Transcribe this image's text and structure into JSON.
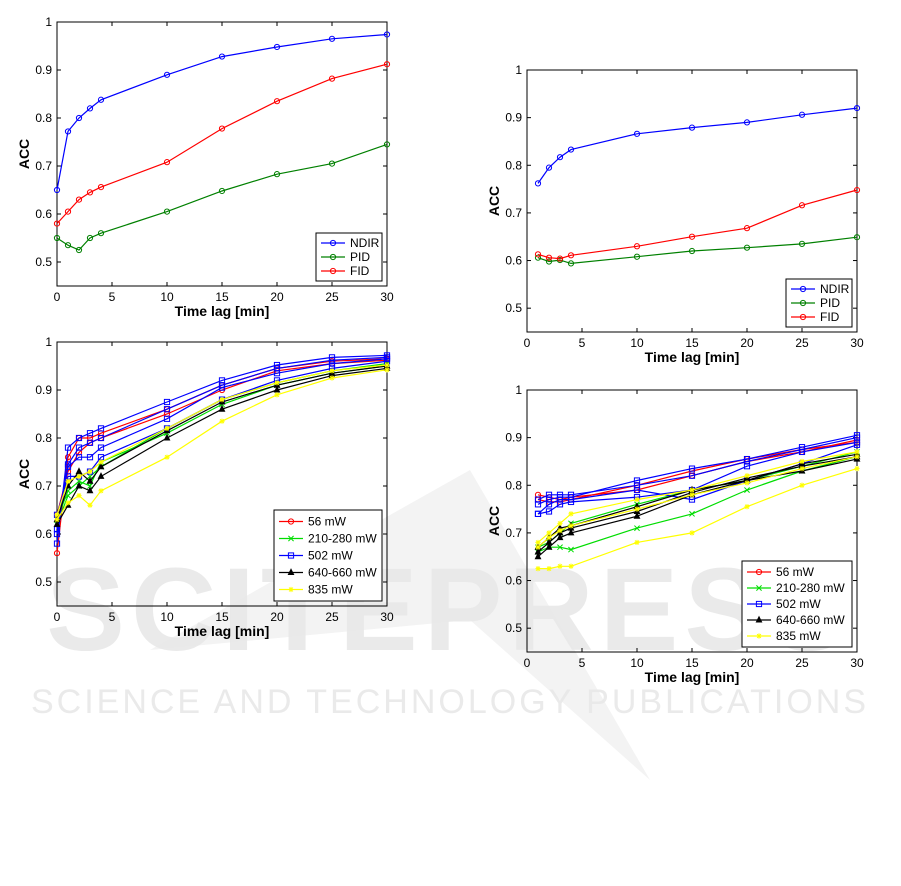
{
  "watermark": {
    "line1": "SCITEPRESS",
    "line2": "SCIENCE AND TECHNOLOGY PUBLICATIONS"
  },
  "chart_data": [
    {
      "type": "line",
      "panel": "top-left",
      "xlabel": "Time lag [min]",
      "ylabel": "ACC",
      "xlim": [
        0,
        30
      ],
      "ylim": [
        0.45,
        1.0
      ],
      "xticks": [
        0,
        5,
        10,
        15,
        20,
        25,
        30
      ],
      "yticks": [
        0.5,
        0.6,
        0.7,
        0.8,
        0.9,
        1
      ],
      "legend": "bottom-right",
      "series": [
        {
          "name": "NDIR",
          "color": "#0000ff",
          "marker": "circle",
          "x": [
            0,
            1,
            2,
            3,
            4,
            10,
            15,
            20,
            25,
            30
          ],
          "y": [
            0.65,
            0.772,
            0.8,
            0.82,
            0.838,
            0.89,
            0.928,
            0.948,
            0.965,
            0.974
          ]
        },
        {
          "name": "PID",
          "color": "#008000",
          "marker": "circle",
          "x": [
            0,
            1,
            2,
            3,
            4,
            10,
            15,
            20,
            25,
            30
          ],
          "y": [
            0.55,
            0.535,
            0.525,
            0.55,
            0.56,
            0.605,
            0.648,
            0.683,
            0.705,
            0.745
          ]
        },
        {
          "name": "FID",
          "color": "#ff0000",
          "marker": "circle",
          "x": [
            0,
            1,
            2,
            3,
            4,
            10,
            15,
            20,
            25,
            30
          ],
          "y": [
            0.58,
            0.605,
            0.63,
            0.645,
            0.656,
            0.708,
            0.778,
            0.835,
            0.882,
            0.912
          ]
        }
      ]
    },
    {
      "type": "line",
      "panel": "top-right",
      "xlabel": "Time lag [min]",
      "ylabel": "ACC",
      "xlim": [
        0,
        30
      ],
      "ylim": [
        0.45,
        1.0
      ],
      "xticks": [
        0,
        5,
        10,
        15,
        20,
        25,
        30
      ],
      "yticks": [
        0.5,
        0.6,
        0.7,
        0.8,
        0.9,
        1
      ],
      "legend": "bottom-right",
      "series": [
        {
          "name": "NDIR",
          "color": "#0000ff",
          "marker": "circle",
          "x": [
            1,
            2,
            3,
            4,
            10,
            15,
            20,
            25,
            30
          ],
          "y": [
            0.762,
            0.795,
            0.817,
            0.833,
            0.866,
            0.879,
            0.89,
            0.906,
            0.92
          ]
        },
        {
          "name": "PID",
          "color": "#008000",
          "marker": "circle",
          "x": [
            1,
            2,
            3,
            4,
            10,
            15,
            20,
            25,
            30
          ],
          "y": [
            0.606,
            0.598,
            0.601,
            0.594,
            0.608,
            0.62,
            0.627,
            0.635,
            0.649
          ]
        },
        {
          "name": "FID",
          "color": "#ff0000",
          "marker": "circle",
          "x": [
            1,
            2,
            3,
            4,
            10,
            15,
            20,
            25,
            30
          ],
          "y": [
            0.613,
            0.606,
            0.604,
            0.611,
            0.63,
            0.65,
            0.668,
            0.716,
            0.748
          ]
        }
      ]
    },
    {
      "type": "line",
      "panel": "bottom-left",
      "xlabel": "Time lag [min]",
      "ylabel": "ACC",
      "xlim": [
        0,
        30
      ],
      "ylim": [
        0.45,
        1.0
      ],
      "xticks": [
        0,
        5,
        10,
        15,
        20,
        25,
        30
      ],
      "yticks": [
        0.5,
        0.6,
        0.7,
        0.8,
        0.9,
        1
      ],
      "legend": "bottom-right",
      "series": [
        {
          "name": "56 mW",
          "color": "#ff0000",
          "marker": "circle",
          "lines": [
            {
              "x": [
                0,
                1,
                2,
                3,
                4,
                10,
                15,
                20,
                25,
                30
              ],
              "y": [
                0.56,
                0.76,
                0.8,
                0.8,
                0.81,
                0.86,
                0.91,
                0.945,
                0.96,
                0.965
              ]
            },
            {
              "x": [
                0,
                1,
                2,
                3,
                4,
                10,
                15,
                20,
                25,
                30
              ],
              "y": [
                0.64,
                0.73,
                0.77,
                0.79,
                0.8,
                0.85,
                0.9,
                0.94,
                0.955,
                0.962
              ]
            }
          ]
        },
        {
          "name": "210-280 mW",
          "color": "#00dd00",
          "marker": "x",
          "lines": [
            {
              "x": [
                0,
                1,
                2,
                3,
                4,
                10,
                15,
                20,
                25,
                30
              ],
              "y": [
                0.63,
                0.69,
                0.71,
                0.7,
                0.75,
                0.81,
                0.87,
                0.91,
                0.935,
                0.95
              ]
            },
            {
              "x": [
                0,
                1,
                2,
                3,
                4,
                10,
                15,
                20,
                25,
                30
              ],
              "y": [
                0.62,
                0.68,
                0.7,
                0.72,
                0.74,
                0.82,
                0.88,
                0.915,
                0.94,
                0.955
              ]
            }
          ]
        },
        {
          "name": "502 mW",
          "color": "#0000ff",
          "marker": "square",
          "lines": [
            {
              "x": [
                0,
                1,
                2,
                3,
                4,
                10,
                15,
                20,
                25,
                30
              ],
              "y": [
                0.58,
                0.78,
                0.8,
                0.81,
                0.82,
                0.875,
                0.92,
                0.952,
                0.968,
                0.972
              ]
            },
            {
              "x": [
                0,
                1,
                2,
                3,
                4,
                10,
                15,
                20,
                25,
                30
              ],
              "y": [
                0.6,
                0.745,
                0.78,
                0.79,
                0.8,
                0.86,
                0.91,
                0.945,
                0.962,
                0.968
              ]
            },
            {
              "x": [
                0,
                1,
                2,
                3,
                4,
                10,
                15,
                20,
                25,
                30
              ],
              "y": [
                0.61,
                0.74,
                0.76,
                0.76,
                0.78,
                0.84,
                0.905,
                0.935,
                0.955,
                0.965
              ]
            },
            {
              "x": [
                0,
                1,
                2,
                3,
                4,
                10,
                15,
                20,
                25,
                30
              ],
              "y": [
                0.64,
                0.72,
                0.72,
                0.73,
                0.76,
                0.82,
                0.88,
                0.92,
                0.945,
                0.96
              ]
            }
          ]
        },
        {
          "name": "640-660 mW",
          "color": "#000000",
          "marker": "triangle",
          "lines": [
            {
              "x": [
                0,
                1,
                2,
                3,
                4,
                10,
                15,
                20,
                25,
                30
              ],
              "y": [
                0.62,
                0.66,
                0.7,
                0.69,
                0.72,
                0.8,
                0.86,
                0.9,
                0.93,
                0.945
              ]
            },
            {
              "x": [
                0,
                1,
                2,
                3,
                4,
                10,
                15,
                20,
                25,
                30
              ],
              "y": [
                0.63,
                0.7,
                0.73,
                0.71,
                0.74,
                0.815,
                0.875,
                0.91,
                0.935,
                0.95
              ]
            }
          ]
        },
        {
          "name": "835 mW",
          "color": "#ffff00",
          "marker": "star",
          "lines": [
            {
              "x": [
                0,
                1,
                2,
                3,
                4,
                10,
                15,
                20,
                25,
                30
              ],
              "y": [
                0.63,
                0.665,
                0.68,
                0.66,
                0.69,
                0.76,
                0.835,
                0.89,
                0.925,
                0.942
              ]
            },
            {
              "x": [
                0,
                1,
                2,
                3,
                4,
                10,
                15,
                20,
                25,
                30
              ],
              "y": [
                0.64,
                0.71,
                0.72,
                0.73,
                0.75,
                0.82,
                0.88,
                0.915,
                0.94,
                0.952
              ]
            }
          ]
        }
      ]
    },
    {
      "type": "line",
      "panel": "bottom-right",
      "xlabel": "Time lag [min]",
      "ylabel": "ACC",
      "xlim": [
        0,
        30
      ],
      "ylim": [
        0.45,
        1.0
      ],
      "xticks": [
        0,
        5,
        10,
        15,
        20,
        25,
        30
      ],
      "yticks": [
        0.5,
        0.6,
        0.7,
        0.8,
        0.9,
        1
      ],
      "legend": "bottom-right",
      "series": [
        {
          "name": "56 mW",
          "color": "#ff0000",
          "marker": "circle",
          "lines": [
            {
              "x": [
                1,
                2,
                3,
                4,
                10,
                15,
                20,
                25,
                30
              ],
              "y": [
                0.78,
                0.775,
                0.77,
                0.775,
                0.79,
                0.82,
                0.85,
                0.87,
                0.895
              ]
            },
            {
              "x": [
                1,
                2,
                3,
                4,
                10,
                15,
                20,
                25,
                30
              ],
              "y": [
                0.77,
                0.765,
                0.765,
                0.77,
                0.8,
                0.83,
                0.855,
                0.875,
                0.89
              ]
            }
          ]
        },
        {
          "name": "210-280 mW",
          "color": "#00dd00",
          "marker": "x",
          "lines": [
            {
              "x": [
                1,
                2,
                3,
                4,
                10,
                15,
                20,
                25,
                30
              ],
              "y": [
                0.66,
                0.67,
                0.67,
                0.665,
                0.71,
                0.74,
                0.79,
                0.83,
                0.86
              ]
            },
            {
              "x": [
                1,
                2,
                3,
                4,
                10,
                15,
                20,
                25,
                30
              ],
              "y": [
                0.67,
                0.68,
                0.7,
                0.72,
                0.76,
                0.79,
                0.81,
                0.84,
                0.87
              ]
            }
          ]
        },
        {
          "name": "502 mW",
          "color": "#0000ff",
          "marker": "square",
          "lines": [
            {
              "x": [
                1,
                2,
                3,
                4,
                10,
                15,
                20,
                25,
                30
              ],
              "y": [
                0.74,
                0.745,
                0.76,
                0.765,
                0.775,
                0.79,
                0.84,
                0.87,
                0.89
              ]
            },
            {
              "x": [
                1,
                2,
                3,
                4,
                10,
                15,
                20,
                25,
                30
              ],
              "y": [
                0.76,
                0.77,
                0.775,
                0.775,
                0.81,
                0.835,
                0.855,
                0.88,
                0.905
              ]
            },
            {
              "x": [
                1,
                2,
                3,
                4,
                10,
                15,
                20,
                25,
                30
              ],
              "y": [
                0.74,
                0.76,
                0.77,
                0.77,
                0.79,
                0.77,
                0.81,
                0.845,
                0.885
              ]
            },
            {
              "x": [
                1,
                2,
                3,
                4,
                10,
                15,
                20,
                25,
                30
              ],
              "y": [
                0.77,
                0.78,
                0.78,
                0.78,
                0.8,
                0.82,
                0.85,
                0.875,
                0.9
              ]
            }
          ]
        },
        {
          "name": "640-660 mW",
          "color": "#000000",
          "marker": "triangle",
          "lines": [
            {
              "x": [
                1,
                2,
                3,
                4,
                10,
                15,
                20,
                25,
                30
              ],
              "y": [
                0.65,
                0.67,
                0.69,
                0.7,
                0.735,
                0.78,
                0.81,
                0.83,
                0.855
              ]
            },
            {
              "x": [
                1,
                2,
                3,
                4,
                10,
                15,
                20,
                25,
                30
              ],
              "y": [
                0.66,
                0.68,
                0.7,
                0.71,
                0.745,
                0.785,
                0.815,
                0.84,
                0.86
              ]
            },
            {
              "x": [
                1,
                2,
                3,
                4,
                10,
                15,
                20,
                25,
                30
              ],
              "y": [
                0.67,
                0.69,
                0.71,
                0.715,
                0.755,
                0.79,
                0.81,
                0.845,
                0.865
              ]
            }
          ]
        },
        {
          "name": "835 mW",
          "color": "#ffff00",
          "marker": "star",
          "lines": [
            {
              "x": [
                1,
                2,
                3,
                4,
                10,
                15,
                20,
                25,
                30
              ],
              "y": [
                0.625,
                0.625,
                0.63,
                0.63,
                0.68,
                0.7,
                0.755,
                0.8,
                0.835
              ]
            },
            {
              "x": [
                1,
                2,
                3,
                4,
                10,
                15,
                20,
                25,
                30
              ],
              "y": [
                0.68,
                0.7,
                0.72,
                0.74,
                0.77,
                0.79,
                0.82,
                0.85,
                0.87
              ]
            },
            {
              "x": [
                1,
                2,
                3,
                4,
                10,
                15,
                20,
                25,
                30
              ],
              "y": [
                0.67,
                0.69,
                0.705,
                0.715,
                0.75,
                0.78,
                0.805,
                0.835,
                0.86
              ]
            }
          ]
        }
      ]
    }
  ]
}
